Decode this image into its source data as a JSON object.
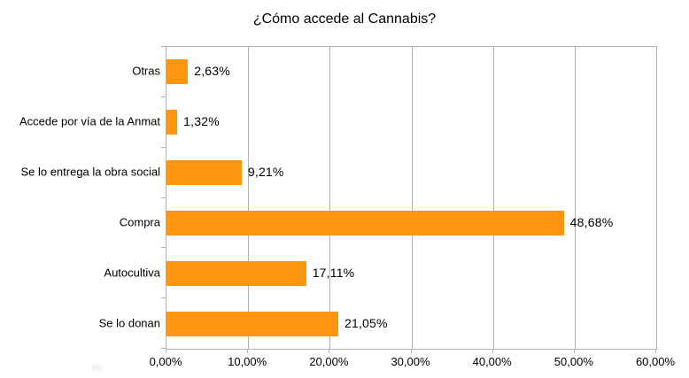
{
  "chart_data": {
    "type": "bar",
    "orientation": "horizontal",
    "title": "¿Cómo accede al Cannabis?",
    "categories": [
      "Otras",
      "Accede por vía de la Anmat",
      "Se lo entrega la obra social",
      "Compra",
      "Autocultiva",
      "Se lo donan"
    ],
    "values": [
      2.63,
      1.32,
      9.21,
      48.68,
      17.11,
      21.05
    ],
    "value_labels": [
      "2,63%",
      "1,32%",
      "9,21%",
      "48,68%",
      "17,11%",
      "21,05%"
    ],
    "xlabel": "",
    "ylabel": "",
    "xlim": [
      0,
      60
    ],
    "x_tick_values": [
      0,
      10,
      20,
      30,
      40,
      50,
      60
    ],
    "x_tick_labels": [
      "0,00%",
      "10,00%",
      "20,00%",
      "30,00%",
      "40,00%",
      "50,00%",
      "60,00%"
    ],
    "grid": "vertical",
    "legend": "none",
    "colors": {
      "bar": "#FF9511",
      "grid": "#B3B3B3",
      "text": "#000000",
      "background": "#FFFFFF"
    }
  }
}
